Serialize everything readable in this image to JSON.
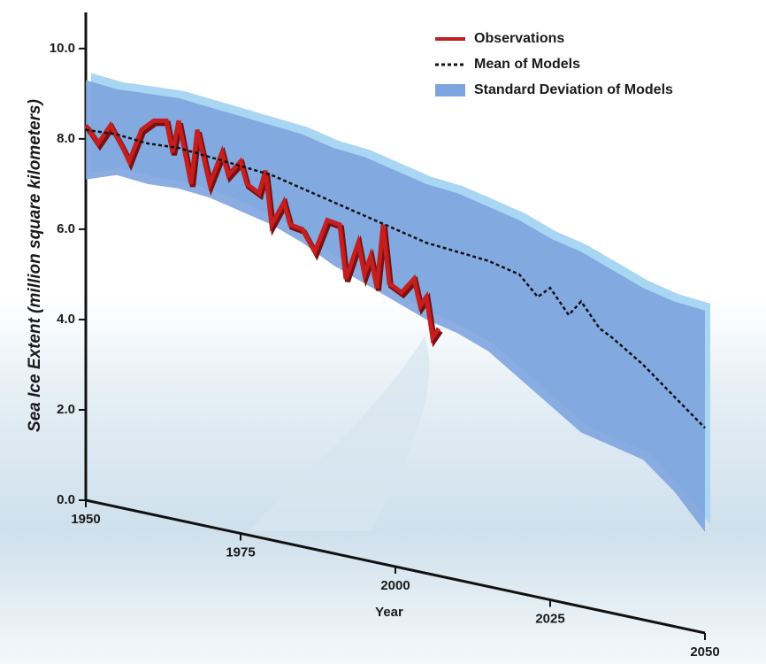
{
  "chart_data": {
    "type": "line",
    "xlabel": "Year",
    "ylabel": "Sea Ice Extent (million square kilometers)",
    "xlim": [
      1950,
      2050
    ],
    "xticks": [
      1950,
      1975,
      2000,
      2025,
      2050
    ],
    "ylim": [
      0,
      10.8
    ],
    "yticks": [
      {
        "value": 0,
        "label": "0.0"
      },
      {
        "value": 2,
        "label": "2.0"
      },
      {
        "value": 4,
        "label": "4.0"
      },
      {
        "value": 6,
        "label": "6.0"
      },
      {
        "value": 8,
        "label": "8.0"
      },
      {
        "value": 10,
        "label": "10.0"
      }
    ],
    "legend": "upper right",
    "series": [
      {
        "name": "Observations",
        "color": "#c41e1e",
        "x": [
          1950,
          1952,
          1954,
          1956,
          1957,
          1959,
          1961,
          1963,
          1964,
          1965,
          1967,
          1968,
          1970,
          1972,
          1973,
          1975,
          1976,
          1978,
          1979,
          1980,
          1982,
          1983,
          1985,
          1987,
          1989,
          1991,
          1992,
          1994,
          1995,
          1996,
          1997,
          1998,
          1999,
          2001,
          2003,
          2004,
          2005,
          2006,
          2007
        ],
        "values": [
          8.3,
          7.9,
          8.3,
          7.8,
          7.5,
          8.2,
          8.4,
          8.4,
          7.7,
          8.4,
          7.0,
          8.2,
          7.0,
          7.7,
          7.2,
          7.5,
          7.0,
          6.8,
          7.3,
          6.1,
          6.6,
          6.1,
          6.0,
          5.5,
          6.2,
          6.1,
          4.9,
          5.7,
          5.0,
          5.4,
          4.7,
          6.1,
          4.8,
          4.6,
          4.9,
          4.3,
          4.5,
          3.6,
          3.8
        ]
      },
      {
        "name": "Mean of Models",
        "color": "#111111",
        "x": [
          1950,
          1955,
          1960,
          1965,
          1970,
          1975,
          1980,
          1985,
          1990,
          1995,
          2000,
          2005,
          2010,
          2015,
          2020,
          2023,
          2025,
          2028,
          2030,
          2033,
          2035,
          2040,
          2045,
          2050
        ],
        "values": [
          8.2,
          8.1,
          7.9,
          7.8,
          7.6,
          7.4,
          7.2,
          6.9,
          6.6,
          6.3,
          6.0,
          5.7,
          5.5,
          5.3,
          5.0,
          4.5,
          4.7,
          4.1,
          4.4,
          3.8,
          3.6,
          3.0,
          2.3,
          1.6
        ]
      },
      {
        "name": "Standard Deviation of Models",
        "color": "#7ea4df",
        "x": [
          1950,
          1955,
          1960,
          1965,
          1970,
          1975,
          1980,
          1985,
          1990,
          1995,
          2000,
          2005,
          2010,
          2015,
          2020,
          2025,
          2030,
          2035,
          2040,
          2045,
          2050
        ],
        "upper": [
          9.3,
          9.1,
          9.0,
          8.9,
          8.7,
          8.5,
          8.3,
          8.1,
          7.8,
          7.6,
          7.3,
          7.0,
          6.8,
          6.5,
          6.2,
          5.8,
          5.5,
          5.1,
          4.7,
          4.4,
          4.2
        ],
        "lower": [
          7.1,
          7.2,
          7.0,
          6.9,
          6.7,
          6.4,
          6.1,
          5.7,
          5.2,
          4.8,
          4.4,
          4.0,
          3.7,
          3.3,
          2.7,
          2.1,
          1.5,
          1.2,
          0.9,
          0.2,
          -0.7
        ]
      }
    ]
  }
}
